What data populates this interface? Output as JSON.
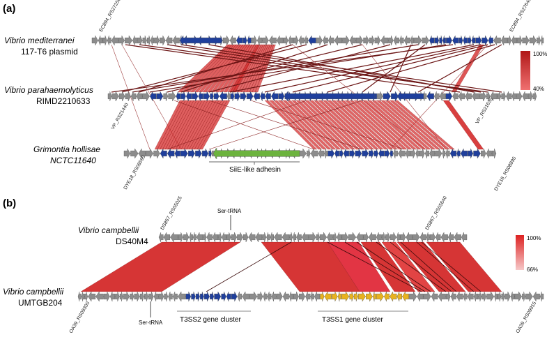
{
  "panel_a": {
    "label": "(a)",
    "species": [
      {
        "name": "Vibrio mediterranei",
        "strain": "117-T6 plasmid"
      },
      {
        "name": "Vibrio parahaemolyticus",
        "strain": "RIMD2210633"
      },
      {
        "name": "Grimontia hollisae",
        "strain": "NCTC11640"
      }
    ],
    "loci": {
      "top_left": "EC894_RS27250",
      "top_right": "EC894_RS27645",
      "mid_left": "VP_RS21440",
      "mid_right": "VP_RS21635",
      "bot_left": "DYE18_RS08595",
      "bot_right": "DYE18_RS08895"
    },
    "feature_label": "SiiE-like adhesin",
    "legend": {
      "max": "100%",
      "min": "40%"
    }
  },
  "panel_b": {
    "label": "(b)",
    "species": [
      {
        "name": "Vibrio campbellii",
        "strain": "DS40M4"
      },
      {
        "name": "Vibrio campbellii",
        "strain": "UMTGB204"
      }
    ],
    "loci": {
      "top_left": "DS867_RS05025",
      "top_right": "DS867_RS05640",
      "bot_left": "OA39_RS09300",
      "bot_right": "OA39_RS09915"
    },
    "trna_top": "Ser-tRNA",
    "trna_bottom": "Ser-tRNA",
    "cluster1": "T3SS2 gene cluster",
    "cluster2": "T3SS1 gene cluster",
    "legend": {
      "max": "100%",
      "min": "66%"
    }
  },
  "colors": {
    "gene_gray": "#8c8c8c",
    "gene_blue": "#1f3f9c",
    "gene_green": "#6cb33e",
    "gene_yellow": "#e8b21f",
    "link_red": "#d42a2a",
    "link_dark": "#6b1414"
  }
}
